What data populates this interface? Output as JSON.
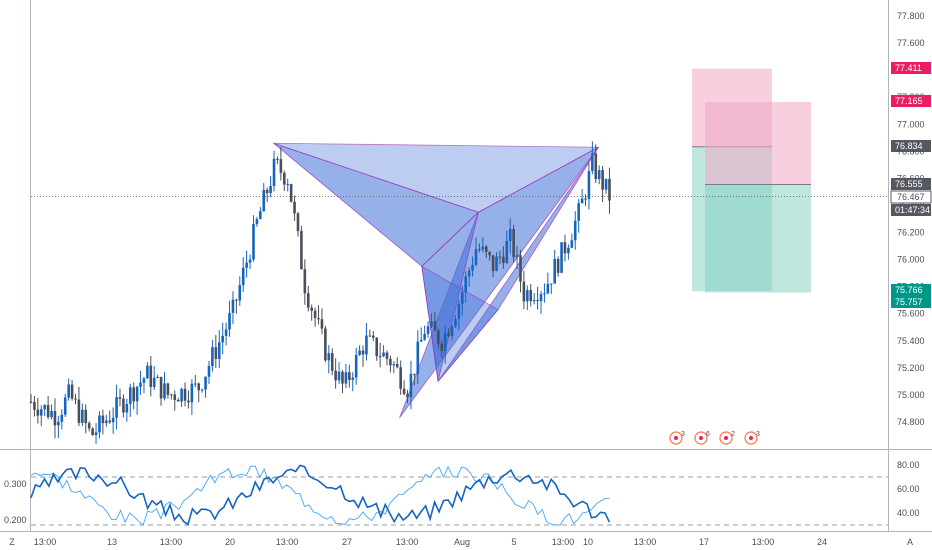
{
  "chart_data": {
    "type": "candlestick",
    "title": "",
    "price_axis": {
      "ticks": [
        "77.800",
        "77.600",
        "77.400",
        "77.200",
        "77.000",
        "76.800",
        "76.600",
        "76.400",
        "76.200",
        "76.000",
        "75.800",
        "75.600",
        "75.400",
        "75.200",
        "75.000",
        "74.800"
      ],
      "ylim": [
        74.7,
        77.9
      ]
    },
    "time_axis": {
      "ticks": [
        "13:00",
        "13",
        "13:00",
        "20",
        "13:00",
        "27",
        "13:00",
        "Aug",
        "5",
        "13:00",
        "10",
        "13:00",
        "17",
        "13:00",
        "24"
      ]
    },
    "price_tags": [
      {
        "label": "77.411",
        "value": 77.411,
        "color": "#e91e63",
        "style": "solid"
      },
      {
        "label": "77.165",
        "value": 77.165,
        "color": "#e91e63",
        "style": "solid"
      },
      {
        "label": "76.834",
        "value": 76.834,
        "color": "#555861",
        "style": "solid"
      },
      {
        "label": "76.555",
        "value": 76.555,
        "color": "#555861",
        "style": "solid"
      },
      {
        "label": "76.467",
        "value": 76.467,
        "color": "#ffffff",
        "style": "outline"
      },
      {
        "label": "01:47:34",
        "value": 76.33,
        "color": "#555861",
        "style": "solid"
      },
      {
        "label": "75.766",
        "value": 75.766,
        "color": "#009688",
        "style": "solid"
      },
      {
        "label": "75.757",
        "value": 75.757,
        "color": "#009688",
        "style": "solid"
      }
    ],
    "last_price": 76.467,
    "candles": [],
    "harmonic_patterns": [
      {
        "name": "",
        "points": [
          [
            0.283,
            76.86
          ],
          [
            0.456,
            75.95
          ],
          [
            0.522,
            76.35
          ],
          [
            0.43,
            74.83
          ],
          [
            0.662,
            76.83
          ]
        ]
      },
      {
        "name": "",
        "points": [
          [
            0.456,
            75.95
          ],
          [
            0.522,
            76.35
          ],
          [
            0.475,
            75.1
          ],
          [
            0.662,
            76.83
          ],
          [
            0.545,
            75.63
          ]
        ]
      }
    ],
    "positions": [
      {
        "type": "short",
        "entry": 76.834,
        "stop": 77.411,
        "target": 75.766
      },
      {
        "type": "short",
        "entry": 76.555,
        "stop": 77.165,
        "target": 75.757
      }
    ],
    "oscillator": {
      "left_ticks": [
        "0.300",
        "0.200"
      ],
      "right_ticks": [
        "80.00",
        "60.00",
        "40.00"
      ],
      "levels": [
        70,
        30
      ],
      "ylim": [
        25,
        85
      ],
      "left_label": "Z",
      "series": [
        {
          "color": "#1565c0",
          "width": 1.6
        },
        {
          "color": "#42a5f5",
          "width": 0.9
        }
      ]
    },
    "event_markers": [
      "3",
      "6",
      "2",
      "3"
    ],
    "corner_label": "A",
    "colors": {
      "up": "#1565c0",
      "down": "#4a4e59",
      "pattern_fill": "#3f6fd8",
      "pattern_stroke": "#9c27b0",
      "stop_zone": "#f0a8c4",
      "target_zone": "#7fcfc2"
    }
  }
}
